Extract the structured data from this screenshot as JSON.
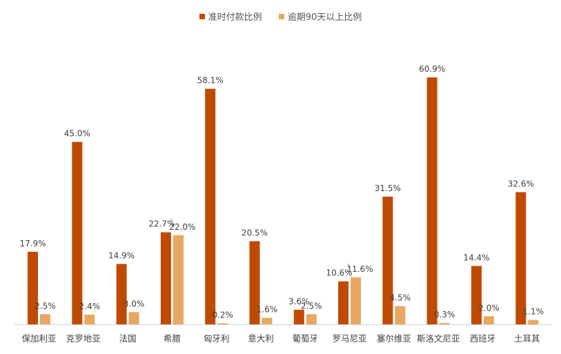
{
  "chart_data": {
    "type": "bar",
    "categories": [
      "保加利亚",
      "克罗地亚",
      "法国",
      "希腊",
      "匈牙利",
      "意大利",
      "葡萄牙",
      "罗马尼亚",
      "塞尔维亚",
      "斯洛文尼亚",
      "西班牙",
      "土耳其"
    ],
    "series": [
      {
        "name": "准时付款比例",
        "color": "#C04B00",
        "values": [
          17.9,
          45.0,
          14.9,
          22.7,
          58.1,
          20.5,
          3.6,
          10.6,
          31.5,
          60.9,
          14.4,
          32.6
        ],
        "labels": [
          "17.9%",
          "45.0%",
          "14.9%",
          "22.7%",
          "58.1%",
          "20.5%",
          "3.6%",
          "10.6%",
          "31.5%",
          "60.9%",
          "14.4%",
          "32.6%"
        ]
      },
      {
        "name": "逾期90天以上比例",
        "color": "#E8A862",
        "values": [
          2.5,
          2.4,
          3.0,
          22.0,
          0.2,
          1.6,
          2.5,
          11.6,
          4.5,
          0.3,
          2.0,
          1.1
        ],
        "labels": [
          "2.5%",
          "2.4%",
          "3.0%",
          "22.0%",
          "0.2%",
          "1.6%",
          "2.5%",
          "11.6%",
          "4.5%",
          "0.3%",
          "2.0%",
          "1.1%"
        ]
      }
    ],
    "title": "",
    "xlabel": "",
    "ylabel": "",
    "ylim": [
      0,
      65
    ],
    "grid": false,
    "legend_position": "top-center",
    "axis_line_color": "#D0D0D0"
  }
}
